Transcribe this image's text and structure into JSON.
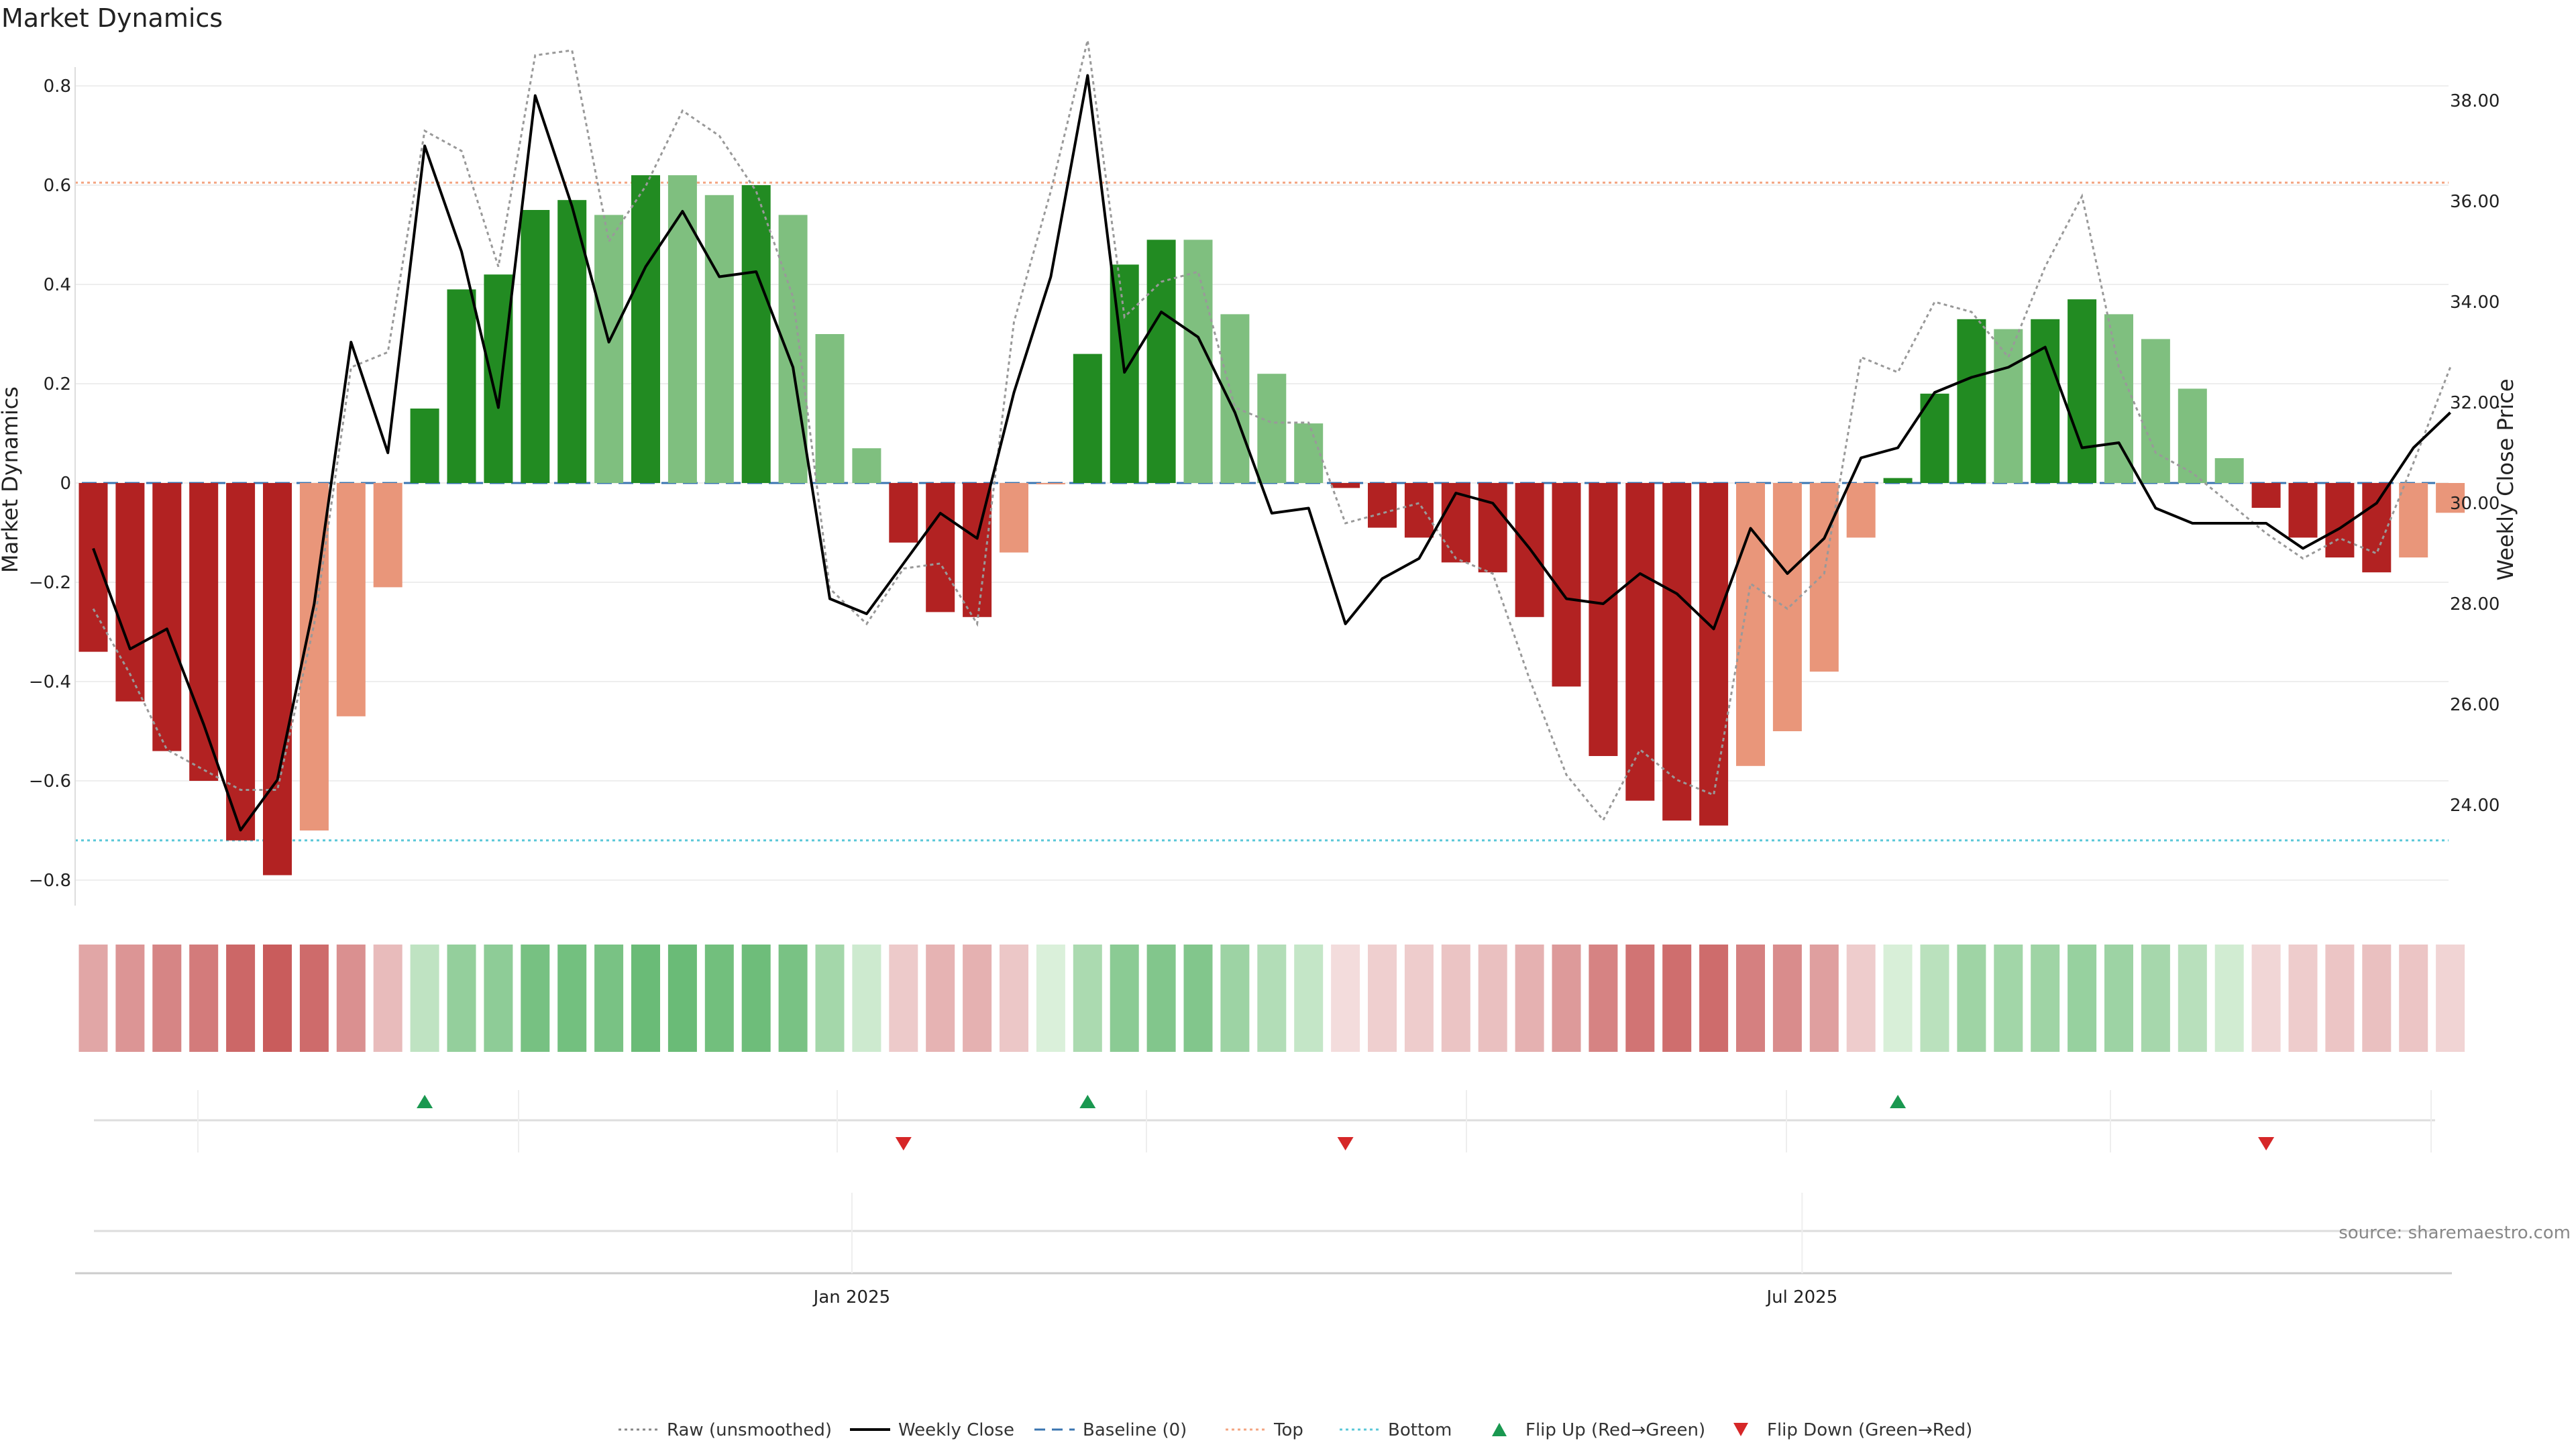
{
  "chart_data": {
    "type": "bar",
    "title": "Market Dynamics",
    "ylabel": "Market Dynamics",
    "ylabel_right": "Weekly Close Price",
    "ylim": [
      -0.87,
      0.87
    ],
    "ylim_right": [
      22.4,
      39.4
    ],
    "yticks": [
      {
        "v": -0.8,
        "t": "−0.8"
      },
      {
        "v": -0.6,
        "t": "−0.6"
      },
      {
        "v": -0.4,
        "t": "−0.4"
      },
      {
        "v": -0.2,
        "t": "−0.2"
      },
      {
        "v": 0,
        "t": "0"
      },
      {
        "v": 0.2,
        "t": "0.2"
      },
      {
        "v": 0.4,
        "t": "0.4"
      },
      {
        "v": 0.6,
        "t": "0.6"
      },
      {
        "v": 0.8,
        "t": "0.8"
      }
    ],
    "yticks_right": [
      {
        "v": 24,
        "t": "24.00"
      },
      {
        "v": 26,
        "t": "26.00"
      },
      {
        "v": 28,
        "t": "28.00"
      },
      {
        "v": 30,
        "t": "30.00"
      },
      {
        "v": 32,
        "t": "32.00"
      },
      {
        "v": 34,
        "t": "34.00"
      },
      {
        "v": 36,
        "t": "36.00"
      },
      {
        "v": 38,
        "t": "38.00"
      }
    ],
    "xticks": [
      {
        "week": 20.6,
        "label": "Jan 2025"
      },
      {
        "week": 46.4,
        "label": "Jul 2025"
      }
    ],
    "top_threshold": 0.605,
    "bottom_threshold": -0.72,
    "baseline": 0,
    "bar_values": [
      -0.34,
      -0.44,
      -0.54,
      -0.6,
      -0.72,
      -0.79,
      -0.7,
      -0.47,
      -0.21,
      0.15,
      0.39,
      0.42,
      0.55,
      0.57,
      0.54,
      0.62,
      0.62,
      0.58,
      0.6,
      0.54,
      0.3,
      0.07,
      -0.12,
      -0.26,
      -0.27,
      -0.14,
      0.0,
      0.26,
      0.44,
      0.49,
      0.49,
      0.34,
      0.22,
      0.12,
      -0.01,
      -0.09,
      -0.11,
      -0.16,
      -0.18,
      -0.27,
      -0.41,
      -0.55,
      -0.64,
      -0.68,
      -0.69,
      -0.57,
      -0.5,
      -0.38,
      -0.11,
      0.01,
      0.18,
      0.33,
      0.31,
      0.33,
      0.37,
      0.34,
      0.29,
      0.19,
      0.05,
      -0.05,
      -0.11,
      -0.15,
      -0.18,
      -0.15,
      -0.06
    ],
    "bar_colors": [
      "#b22222",
      "#b22222",
      "#b22222",
      "#b22222",
      "#b22222",
      "#b22222",
      "#e9967a",
      "#e9967a",
      "#e9967a",
      "#228b22",
      "#228b22",
      "#228b22",
      "#228b22",
      "#228b22",
      "#7fbf7f",
      "#228b22",
      "#7fbf7f",
      "#7fbf7f",
      "#228b22",
      "#7fbf7f",
      "#7fbf7f",
      "#7fbf7f",
      "#b22222",
      "#b22222",
      "#b22222",
      "#e9967a",
      "#e9967a",
      "#228b22",
      "#228b22",
      "#228b22",
      "#7fbf7f",
      "#7fbf7f",
      "#7fbf7f",
      "#7fbf7f",
      "#b22222",
      "#b22222",
      "#b22222",
      "#b22222",
      "#b22222",
      "#b22222",
      "#b22222",
      "#b22222",
      "#b22222",
      "#b22222",
      "#b22222",
      "#e9967a",
      "#e9967a",
      "#e9967a",
      "#e9967a",
      "#228b22",
      "#228b22",
      "#228b22",
      "#7fbf7f",
      "#228b22",
      "#228b22",
      "#7fbf7f",
      "#7fbf7f",
      "#7fbf7f",
      "#7fbf7f",
      "#b22222",
      "#b22222",
      "#b22222",
      "#b22222",
      "#e9967a",
      "#e9967a"
    ],
    "weekly_close": [
      29.1,
      27.1,
      27.5,
      25.6,
      23.5,
      24.5,
      28.0,
      33.2,
      31.0,
      37.1,
      35.0,
      31.9,
      38.1,
      35.9,
      33.2,
      34.7,
      35.8,
      34.5,
      34.6,
      32.7,
      28.1,
      27.8,
      28.8,
      29.8,
      29.3,
      32.2,
      34.5,
      38.5,
      32.6,
      33.8,
      33.3,
      31.8,
      29.8,
      29.9,
      27.6,
      28.5,
      28.9,
      30.2,
      30.0,
      29.1,
      28.1,
      28.0,
      28.6,
      28.2,
      27.5,
      29.5,
      28.6,
      29.3,
      30.9,
      31.1,
      32.2,
      32.5,
      32.7,
      33.1,
      31.1,
      31.2,
      29.9,
      29.6,
      29.6,
      29.6,
      29.1,
      29.5,
      30.0,
      31.1,
      31.8
    ],
    "raw_unsmoothed": [
      27.9,
      26.6,
      25.1,
      24.7,
      24.3,
      24.3,
      27.6,
      32.7,
      33.0,
      37.4,
      37.0,
      34.7,
      38.9,
      39.0,
      35.2,
      36.3,
      37.8,
      37.3,
      36.2,
      34.1,
      28.3,
      27.6,
      28.7,
      28.8,
      27.6,
      33.6,
      36.2,
      39.2,
      33.7,
      34.4,
      34.6,
      31.9,
      31.6,
      31.6,
      29.6,
      29.8,
      30.0,
      28.9,
      28.6,
      26.5,
      24.6,
      23.7,
      25.1,
      24.5,
      24.2,
      28.4,
      27.9,
      28.6,
      32.9,
      32.6,
      34.0,
      33.8,
      32.9,
      34.7,
      36.1,
      32.7,
      31.0,
      30.6,
      30.0,
      29.4,
      28.9,
      29.3,
      29.0,
      30.8,
      32.7
    ],
    "heat_strip": [
      -0.34,
      -0.44,
      -0.54,
      -0.6,
      -0.72,
      -0.79,
      -0.7,
      -0.47,
      -0.21,
      0.15,
      0.39,
      0.42,
      0.55,
      0.57,
      0.54,
      0.62,
      0.62,
      0.58,
      0.6,
      0.54,
      0.3,
      0.07,
      -0.12,
      -0.26,
      -0.27,
      -0.14,
      0.0,
      0.26,
      0.44,
      0.49,
      0.49,
      0.34,
      0.22,
      0.12,
      -0.01,
      -0.09,
      -0.11,
      -0.16,
      -0.18,
      -0.27,
      -0.41,
      -0.55,
      -0.64,
      -0.68,
      -0.69,
      -0.57,
      -0.5,
      -0.38,
      -0.11,
      0.01,
      0.18,
      0.33,
      0.31,
      0.33,
      0.37,
      0.34,
      0.29,
      0.19,
      0.05,
      -0.05,
      -0.11,
      -0.15,
      -0.18,
      -0.15,
      -0.06
    ],
    "flip_up_weeks": [
      9,
      27,
      49
    ],
    "flip_down_weeks": [
      22,
      34,
      59
    ],
    "legend": [
      {
        "label": "Raw (unsmoothed)",
        "marker": "dotted-line",
        "color": "#888888"
      },
      {
        "label": "Weekly Close",
        "marker": "line",
        "color": "#000000"
      },
      {
        "label": "Baseline (0)",
        "marker": "dashed-line",
        "color": "#3a75b0"
      },
      {
        "label": "Top",
        "marker": "dotted-line",
        "color": "#f4a582"
      },
      {
        "label": "Bottom",
        "marker": "dotted-line",
        "color": "#5bc8d8"
      },
      {
        "label": "Flip Up (Red→Green)",
        "marker": "triangle-up",
        "color": "#1a9850"
      },
      {
        "label": "Flip Down (Green→Red)",
        "marker": "triangle-down",
        "color": "#d62728"
      }
    ],
    "source": "source: sharemaestro.com"
  }
}
